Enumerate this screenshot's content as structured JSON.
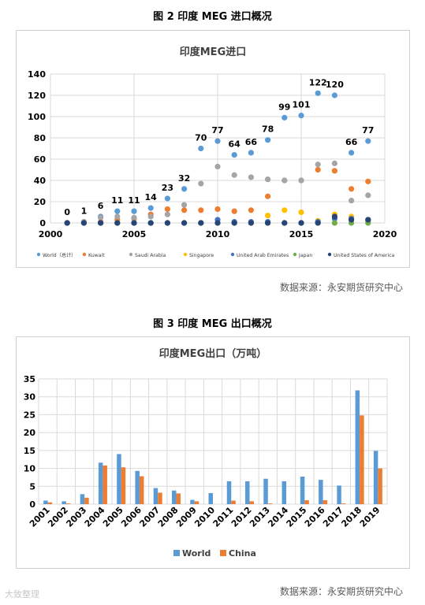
{
  "figures": {
    "fig2_caption": "图 2  印度 MEG 进口概况",
    "fig3_caption": "图 3  印度 MEG 出口概况",
    "source1": "数据来源：永安期货研究中心",
    "source2": "数据来源：永安期货研究中心",
    "watermark": "大致整理"
  },
  "chart_data": [
    {
      "type": "scatter",
      "title": "印度MEG进口",
      "xlim": [
        2000,
        2020
      ],
      "ylim": [
        0,
        140
      ],
      "xticks": [
        2000,
        2005,
        2010,
        2015,
        2020
      ],
      "yticks": [
        0,
        20,
        40,
        60,
        80,
        100,
        120,
        140
      ],
      "grid": true,
      "legend_position": "bottom",
      "x": [
        2001,
        2002,
        2003,
        2004,
        2005,
        2006,
        2007,
        2008,
        2009,
        2010,
        2011,
        2012,
        2013,
        2014,
        2015,
        2016,
        2017,
        2018,
        2019
      ],
      "series": [
        {
          "name": "World（总计）",
          "color": "#5b9bd5",
          "labeled": true,
          "values": [
            0,
            1,
            6,
            11,
            11,
            14,
            23,
            32,
            70,
            77,
            64,
            66,
            78,
            99,
            101,
            122,
            120,
            66,
            77
          ]
        },
        {
          "name": "Kuwait",
          "color": "#ed7d31",
          "values": [
            0,
            0,
            1,
            3,
            4,
            8,
            13,
            12,
            12,
            13,
            11,
            12,
            25,
            40,
            40,
            50,
            49,
            32,
            39
          ]
        },
        {
          "name": "Saudi Arabia",
          "color": "#a5a5a5",
          "values": [
            0,
            1,
            5,
            6,
            5,
            6,
            8,
            17,
            37,
            53,
            45,
            43,
            41,
            40,
            40,
            55,
            56,
            21,
            26
          ]
        },
        {
          "name": "Singapore",
          "color": "#ffc000",
          "values": [
            0,
            0,
            0,
            0,
            0,
            0,
            0,
            0,
            0,
            0,
            0,
            0,
            7,
            12,
            10,
            2,
            8,
            6,
            1
          ]
        },
        {
          "name": "United Arab Emirates",
          "color": "#4472c4",
          "values": [
            0,
            0,
            0,
            0,
            0,
            0,
            0,
            0,
            0,
            3,
            1,
            1,
            1,
            0,
            0,
            1,
            4,
            4,
            3
          ]
        },
        {
          "name": "Japan",
          "color": "#70ad47",
          "values": [
            0,
            0,
            0,
            0,
            0,
            0,
            0,
            0,
            0,
            0,
            0,
            0,
            0,
            0,
            0,
            0,
            0,
            0,
            0
          ]
        },
        {
          "name": "United States of America",
          "color": "#264478",
          "values": [
            0,
            0,
            0,
            0,
            0,
            0,
            0,
            0,
            0,
            0,
            0,
            0,
            0,
            0,
            0,
            0,
            6,
            3,
            3
          ]
        }
      ]
    },
    {
      "type": "bar",
      "title": "印度MEG出口（万吨）",
      "ylim": [
        0,
        35
      ],
      "yticks": [
        0,
        5,
        10,
        15,
        20,
        25,
        30,
        35
      ],
      "grid": true,
      "legend_position": "bottom",
      "categories": [
        "2001",
        "2002",
        "2003",
        "2004",
        "2005",
        "2006",
        "2007",
        "2008",
        "2009",
        "2010",
        "2011",
        "2012",
        "2013",
        "2014",
        "2015",
        "2016",
        "2017",
        "2018",
        "2019"
      ],
      "series": [
        {
          "name": "World",
          "color": "#5b9bd5",
          "values": [
            1.0,
            0.8,
            2.8,
            11.6,
            14.0,
            9.3,
            4.5,
            3.8,
            1.2,
            3.1,
            6.4,
            6.4,
            7.1,
            6.4,
            7.7,
            6.8,
            5.2,
            31.8,
            14.9
          ]
        },
        {
          "name": "China",
          "color": "#ed7d31",
          "values": [
            0.5,
            0.2,
            1.8,
            10.8,
            10.3,
            7.8,
            3.2,
            3.0,
            0.8,
            0.0,
            1.0,
            0.8,
            0.2,
            0.0,
            1.1,
            1.1,
            0.2,
            24.8,
            10.0
          ]
        }
      ]
    }
  ]
}
